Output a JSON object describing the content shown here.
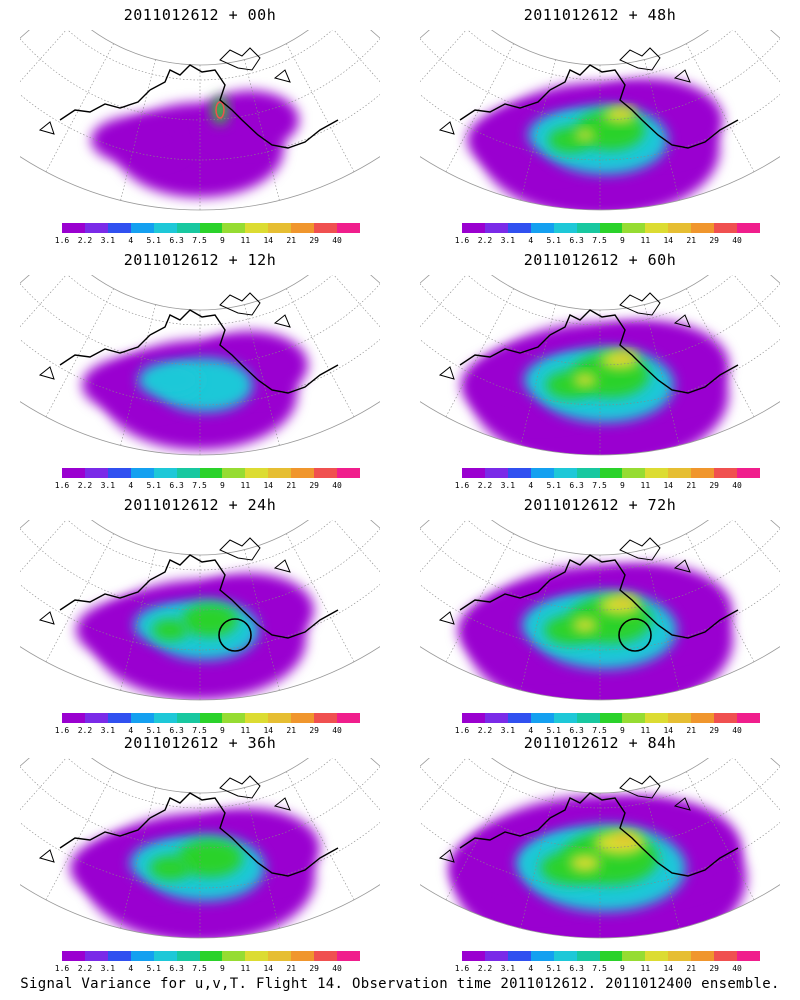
{
  "figure": {
    "caption": "Signal Variance for u,v,T. Flight 14. Observation time 2011012612. 2011012400 ensemble."
  },
  "colorbar": {
    "levels": [
      "1.6",
      "2.2",
      "3.1",
      "4",
      "5.1",
      "6.3",
      "7.5",
      "9",
      "11",
      "14",
      "21",
      "29",
      "40"
    ],
    "colors": [
      "#9a00d0",
      "#7a2ae8",
      "#3050f0",
      "#14a0f0",
      "#1ec8d8",
      "#18c8a0",
      "#2ad22a",
      "#96dc32",
      "#dcdc32",
      "#e6be32",
      "#f0962d",
      "#f05050",
      "#f01e8c"
    ]
  },
  "panels": [
    {
      "title": "2011012612 + 00h",
      "intensity": 0.15,
      "circle": false
    },
    {
      "title": "2011012612 + 48h",
      "intensity": 0.55,
      "circle": false
    },
    {
      "title": "2011012612 + 12h",
      "intensity": 0.3,
      "circle": false
    },
    {
      "title": "2011012612 + 60h",
      "intensity": 0.65,
      "circle": false
    },
    {
      "title": "2011012612 + 24h",
      "intensity": 0.4,
      "circle": true
    },
    {
      "title": "2011012612 + 72h",
      "intensity": 0.7,
      "circle": true
    },
    {
      "title": "2011012612 + 36h",
      "intensity": 0.5,
      "circle": false
    },
    {
      "title": "2011012612 + 84h",
      "intensity": 0.85,
      "circle": false
    }
  ]
}
